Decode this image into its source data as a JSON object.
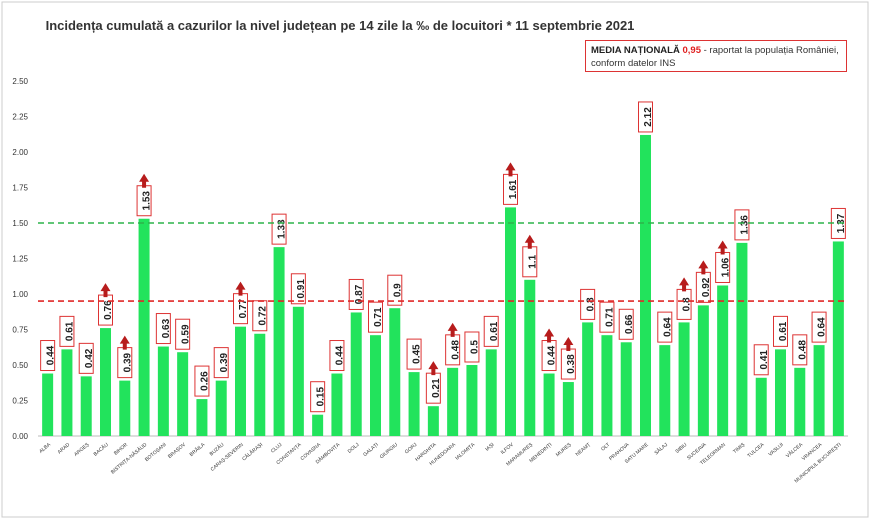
{
  "chart_data": {
    "type": "bar",
    "title": "Incidența cumulată a cazurilor la nivel județean pe 14 zile la ‰ de locuitori * 11 septembrie 2021",
    "categories": [
      "ALBA",
      "ARAD",
      "ARGEȘ",
      "BACĂU",
      "BIHOR",
      "BISTRIȚA-NĂSĂUD",
      "BOTOȘANI",
      "BRAȘOV",
      "BRĂILA",
      "BUZĂU",
      "CARAȘ-SEVERIN",
      "CĂLĂRAȘI",
      "CLUJ",
      "CONSTANȚA",
      "COVASNA",
      "DÂMBOVIȚA",
      "DOLJ",
      "GALAȚI",
      "GIURGIU",
      "GORJ",
      "HARGHITA",
      "HUNEDOARA",
      "IALOMIȚA",
      "IAȘI",
      "ILFOV",
      "MARAMUREȘ",
      "MEHEDINȚI",
      "MUREȘ",
      "NEAMȚ",
      "OLT",
      "PRAHOVA",
      "SATU MARE",
      "SĂLAJ",
      "SIBIU",
      "SUCEAVA",
      "TELEORMAN",
      "TIMIȘ",
      "TULCEA",
      "VASLUI",
      "VÂLCEA",
      "VRANCEA",
      "MUNICIPIUL BUCUREȘTI"
    ],
    "values": [
      0.44,
      0.61,
      0.42,
      0.76,
      0.39,
      1.53,
      0.63,
      0.59,
      0.26,
      0.39,
      0.77,
      0.72,
      1.33,
      0.91,
      0.15,
      0.44,
      0.87,
      0.71,
      0.9,
      0.45,
      0.21,
      0.48,
      0.5,
      0.61,
      1.61,
      1.1,
      0.44,
      0.38,
      0.8,
      0.71,
      0.66,
      2.12,
      0.64,
      0.8,
      0.92,
      1.06,
      1.36,
      0.41,
      0.61,
      0.48,
      0.64,
      1.37
    ],
    "increase": [
      false,
      false,
      false,
      true,
      true,
      true,
      false,
      false,
      false,
      false,
      true,
      false,
      false,
      false,
      false,
      false,
      false,
      false,
      false,
      false,
      true,
      true,
      false,
      false,
      true,
      true,
      true,
      true,
      false,
      false,
      false,
      false,
      false,
      true,
      true,
      true,
      false,
      false,
      false,
      false,
      false,
      false
    ],
    "color": "#22e35c",
    "ylim": [
      0,
      2.5
    ],
    "yticks": [
      {
        "value": 0,
        "label": "0.00"
      },
      0.25,
      {
        "value": 0.5,
        "label": "0.50"
      },
      0.75,
      {
        "value": 1,
        "label": "1.00"
      },
      1.25,
      {
        "value": 1.5,
        "label": "1.50"
      },
      1.75,
      {
        "value": 2,
        "label": "2.00"
      },
      2.25,
      {
        "value": 2.5,
        "label": "2.50"
      }
    ],
    "reference_lines": [
      {
        "value": 1.5,
        "color": "#2db34a"
      },
      {
        "value": 0.95,
        "color": "#e02828"
      }
    ],
    "annotation": {
      "label": "MEDIA NAȚIONALĂ",
      "value_text": "0,95",
      "text": "- raportat la populația României, conform datelor INS"
    }
  }
}
